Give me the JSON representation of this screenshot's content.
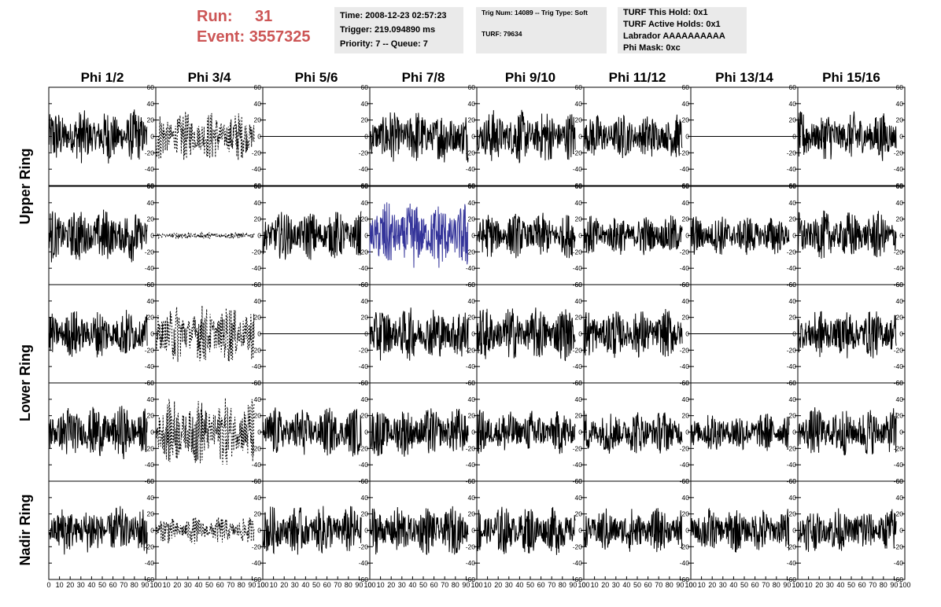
{
  "header": {
    "run_label": "Run:",
    "run_value": "31",
    "event_label": "Event:",
    "event_value": "3557325",
    "time_line": "Time: 2008-12-23 02:57:23",
    "trigger_line": "Trigger: 219.094890 ms",
    "priority_line": "Priority: 7 -- Queue: 7",
    "trig_line": "Trig Num: 14089 -- Trig Type: Soft",
    "turf_line": "TURF: 79634",
    "turf_hold_line": "TURF This Hold: 0x1",
    "turf_active_line": "TURF Active Holds: 0x1",
    "labrador_line": "Labrador AAAAAAAAAA",
    "phi_mask_line": "Phi Mask: 0xc"
  },
  "chart_data": {
    "type": "line",
    "columns": [
      "Phi 1/2",
      "Phi 3/4",
      "Phi 5/6",
      "Phi 7/8",
      "Phi 9/10",
      "Phi 11/12",
      "Phi 13/14",
      "Phi 15/16"
    ],
    "ring_labels": [
      "Upper Ring",
      "Lower Ring",
      "Nadir Ring"
    ],
    "rows": 5,
    "xlim": [
      0,
      100
    ],
    "ylim": [
      -60,
      60
    ],
    "x_ticks": [
      0,
      10,
      20,
      30,
      40,
      50,
      60,
      70,
      80,
      90,
      100
    ],
    "x_tick_text": [
      "0",
      "10",
      "20",
      "30",
      "40",
      "50",
      "60",
      "70",
      "80",
      "90",
      "100"
    ],
    "y_ticks": [
      -60,
      -40,
      -20,
      0,
      20,
      40,
      60
    ],
    "y_tick_text": [
      "-60",
      "-40",
      "-20",
      "0",
      "20",
      "40",
      "60"
    ],
    "waveform_x_range": [
      0,
      92
    ],
    "colors": {
      "trace": "#000000",
      "highlight": "#333399"
    },
    "panels": [
      [
        {
          "style": "solid",
          "amplitude": 24
        },
        {
          "style": "dashed",
          "amplitude": 22
        },
        {
          "style": "flat",
          "amplitude": 0
        },
        {
          "style": "solid",
          "amplitude": 24
        },
        {
          "style": "solid",
          "amplitude": 24
        },
        {
          "style": "solid",
          "amplitude": 20
        },
        {
          "style": "flat",
          "amplitude": 0
        },
        {
          "style": "solid",
          "amplitude": 22
        }
      ],
      [
        {
          "style": "solid",
          "amplitude": 24
        },
        {
          "style": "dashed",
          "amplitude": 3
        },
        {
          "style": "solid",
          "amplitude": 22
        },
        {
          "style": "highlight",
          "amplitude": 30
        },
        {
          "style": "solid",
          "amplitude": 20
        },
        {
          "style": "solid",
          "amplitude": 18
        },
        {
          "style": "solid",
          "amplitude": 18
        },
        {
          "style": "solid",
          "amplitude": 22
        }
      ],
      [
        {
          "style": "solid",
          "amplitude": 22
        },
        {
          "style": "dashed",
          "amplitude": 26
        },
        {
          "style": "flat",
          "amplitude": 0
        },
        {
          "style": "solid",
          "amplitude": 24
        },
        {
          "style": "solid",
          "amplitude": 24
        },
        {
          "style": "solid",
          "amplitude": 22
        },
        {
          "style": "flat",
          "amplitude": 0
        },
        {
          "style": "solid",
          "amplitude": 22
        }
      ],
      [
        {
          "style": "solid",
          "amplitude": 24
        },
        {
          "style": "dashed",
          "amplitude": 30
        },
        {
          "style": "solid",
          "amplitude": 22
        },
        {
          "style": "solid",
          "amplitude": 22
        },
        {
          "style": "solid",
          "amplitude": 20
        },
        {
          "style": "solid",
          "amplitude": 20
        },
        {
          "style": "solid",
          "amplitude": 18
        },
        {
          "style": "solid",
          "amplitude": 22
        }
      ],
      [
        {
          "style": "solid",
          "amplitude": 22
        },
        {
          "style": "dashed",
          "amplitude": 12
        },
        {
          "style": "solid",
          "amplitude": 22
        },
        {
          "style": "solid",
          "amplitude": 22
        },
        {
          "style": "solid",
          "amplitude": 22
        },
        {
          "style": "solid",
          "amplitude": 20
        },
        {
          "style": "solid",
          "amplitude": 20
        },
        {
          "style": "solid",
          "amplitude": 20
        }
      ]
    ]
  }
}
